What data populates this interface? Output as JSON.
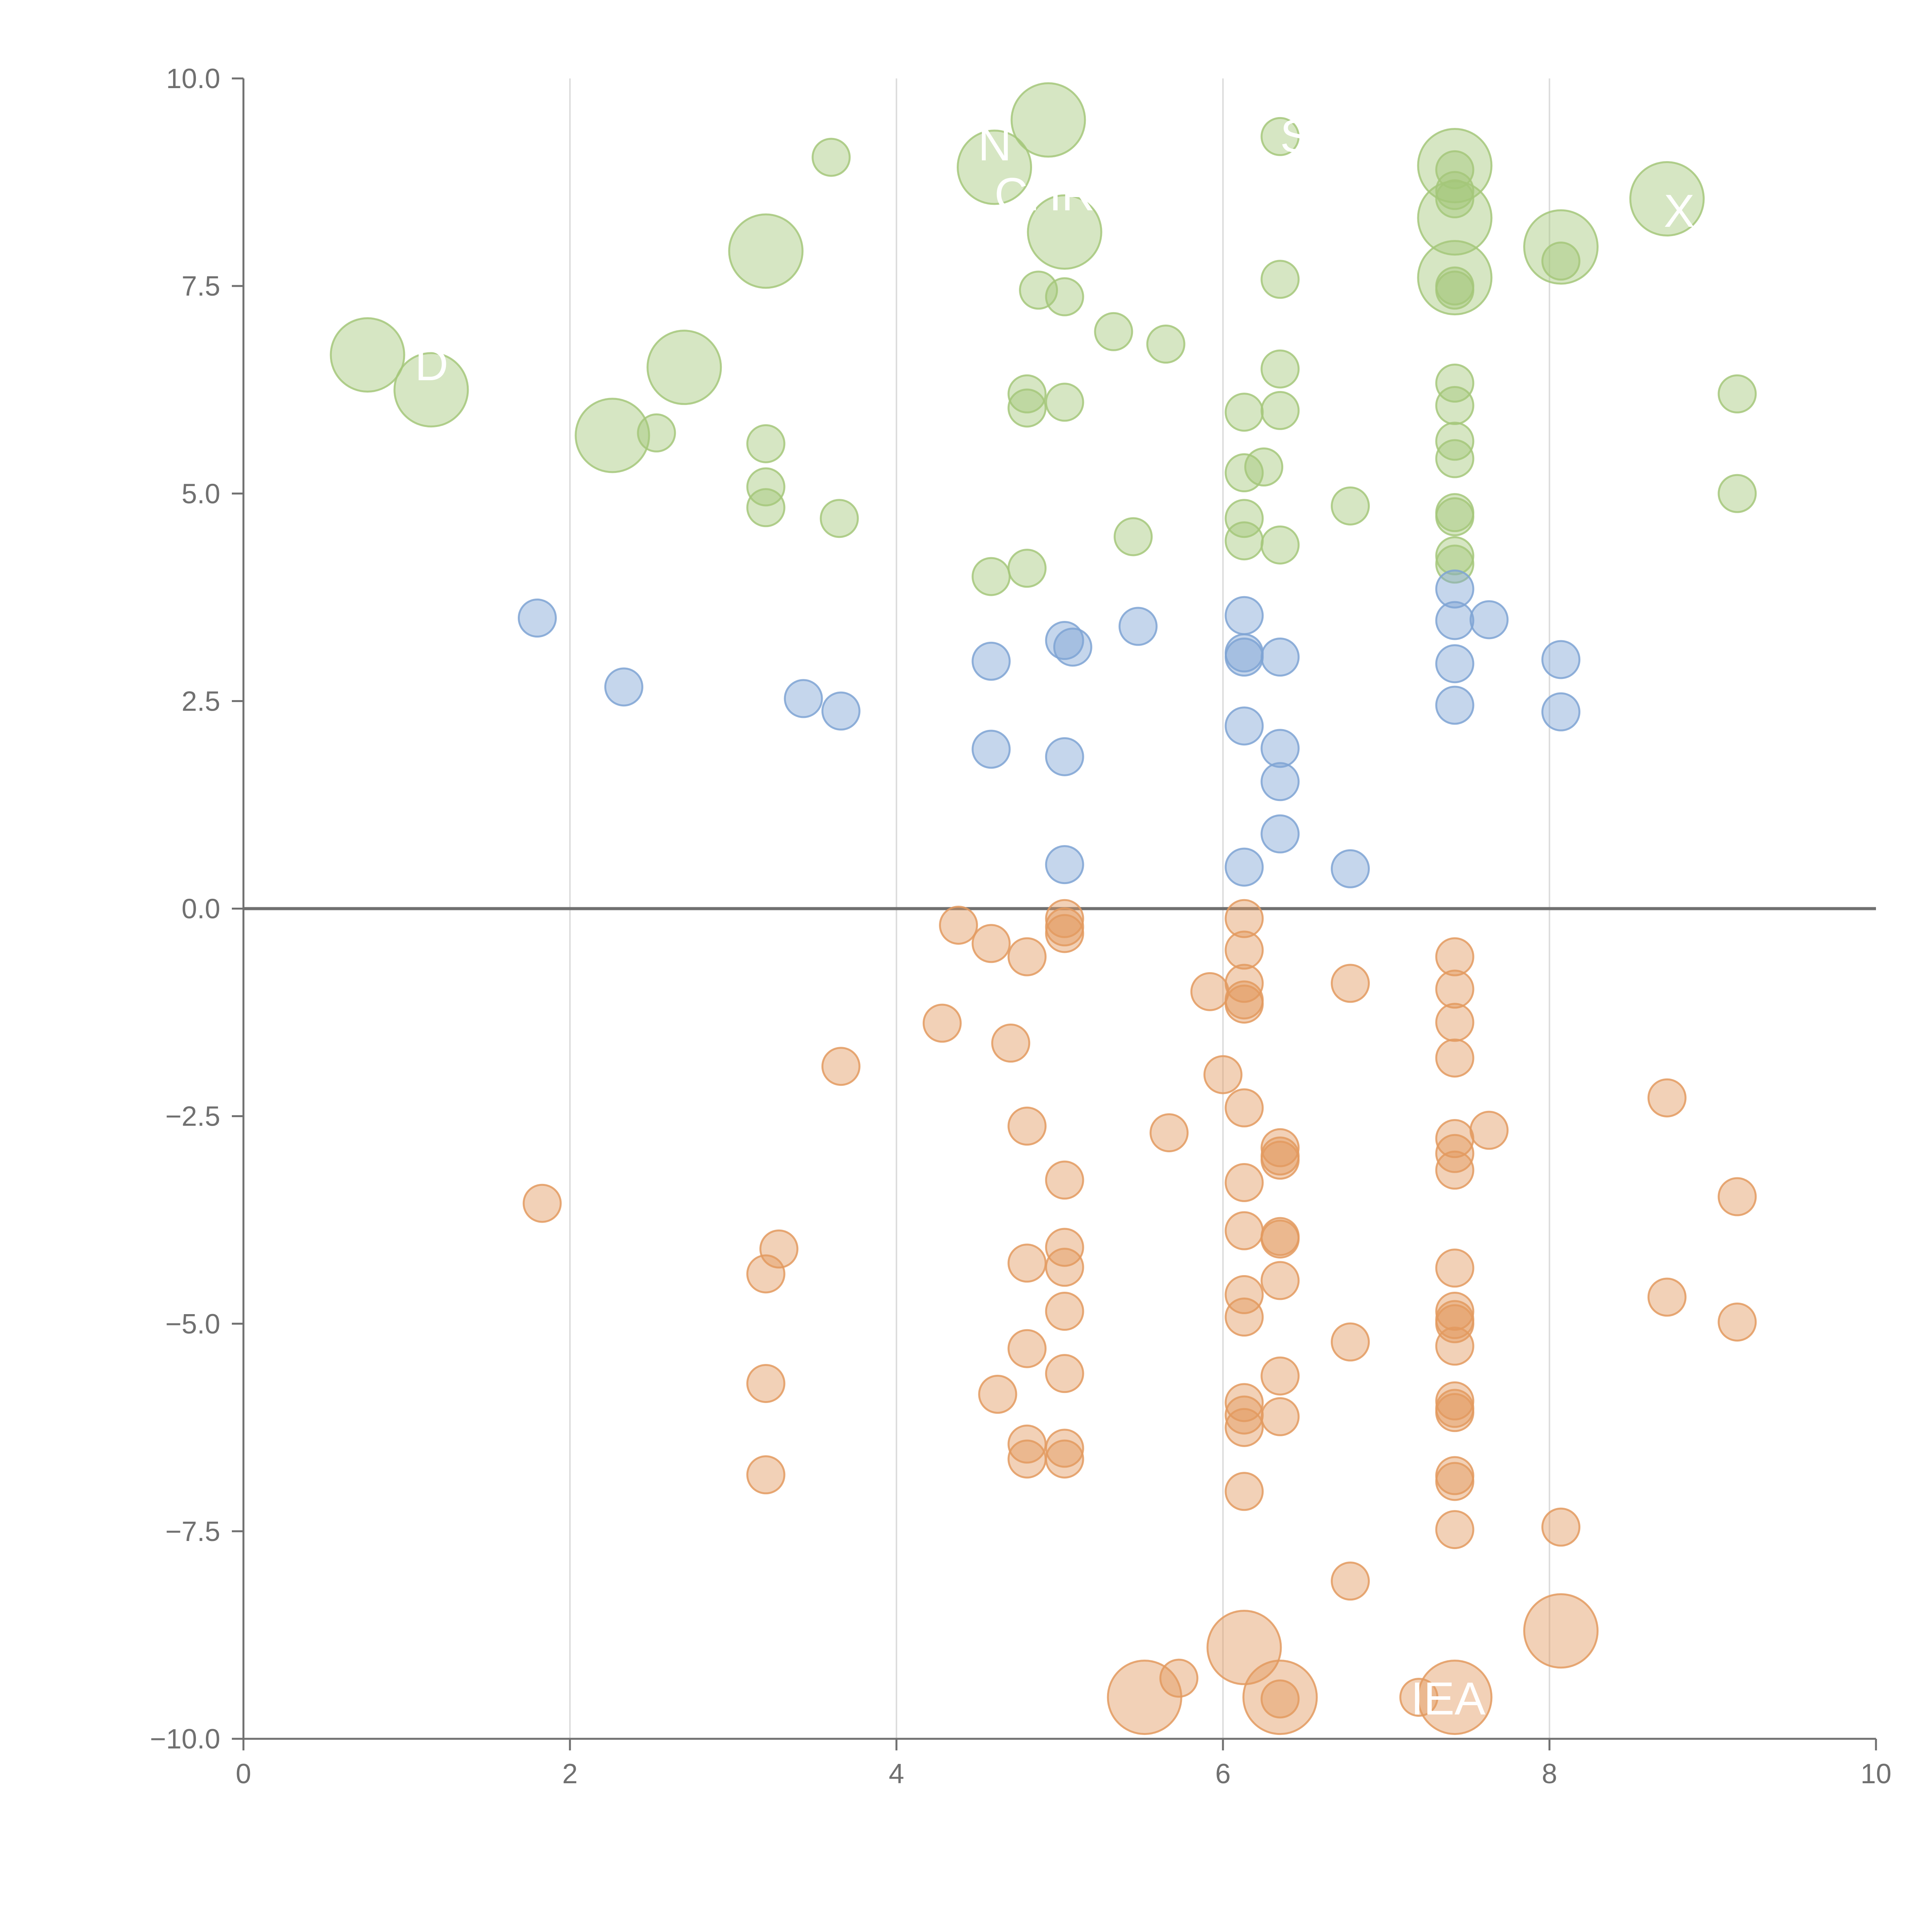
{
  "chart_data": {
    "type": "scatter",
    "title": "",
    "xlabel": "",
    "ylabel": "",
    "xlim": [
      0,
      10
    ],
    "ylim": [
      -10,
      10
    ],
    "x_ticks": [
      "0",
      "2",
      "4",
      "6",
      "8",
      "10"
    ],
    "x_tick_values": [
      0,
      2,
      4,
      6,
      8,
      10
    ],
    "y_ticks": [
      "10.0",
      "7.5",
      "5.0",
      "2.5",
      "0.0",
      "−2.5",
      "−5.0",
      "−7.5",
      "−10.0"
    ],
    "y_tick_values": [
      10,
      7.5,
      5,
      2.5,
      0,
      -2.5,
      -5,
      -7.5,
      -10
    ],
    "vertical_gridlines_at": [
      2,
      4,
      6,
      8
    ],
    "reference_line_y": 0,
    "colors": {
      "green": "#a5c77a",
      "blue": "#7ea3d4",
      "orange": "#e39a5f",
      "axis": "#707070",
      "grid": "#dddddd"
    },
    "series": [
      {
        "name": "green",
        "color": "#a5c77a",
        "size_small": 1,
        "size_large": 2,
        "points": [
          [
            3.6,
            9.05,
            1
          ],
          [
            4.93,
            9.5,
            2
          ],
          [
            4.6,
            8.93,
            2
          ],
          [
            6.35,
            9.3,
            1
          ],
          [
            7.42,
            8.95,
            2
          ],
          [
            7.42,
            8.9,
            1
          ],
          [
            7.42,
            8.65,
            1
          ],
          [
            7.42,
            8.55,
            1
          ],
          [
            7.42,
            8.32,
            2
          ],
          [
            8.72,
            8.55,
            2
          ],
          [
            8.07,
            7.97,
            2
          ],
          [
            5.03,
            8.15,
            2
          ],
          [
            3.2,
            7.92,
            2
          ],
          [
            7.42,
            7.6,
            2
          ],
          [
            7.42,
            7.5,
            1
          ],
          [
            7.42,
            7.45,
            1
          ],
          [
            8.07,
            7.8,
            1
          ],
          [
            6.35,
            7.58,
            1
          ],
          [
            4.87,
            7.45,
            1
          ],
          [
            5.03,
            7.37,
            1
          ],
          [
            5.33,
            6.95,
            1
          ],
          [
            5.65,
            6.8,
            1
          ],
          [
            0.76,
            6.67,
            2
          ],
          [
            1.15,
            6.25,
            2
          ],
          [
            2.7,
            6.52,
            2
          ],
          [
            2.26,
            5.7,
            2
          ],
          [
            2.53,
            5.73,
            1
          ],
          [
            4.8,
            6.2,
            1
          ],
          [
            4.8,
            6.03,
            1
          ],
          [
            5.03,
            6.1,
            1
          ],
          [
            6.13,
            5.98,
            1
          ],
          [
            6.35,
            6.5,
            1
          ],
          [
            6.35,
            6.0,
            1
          ],
          [
            7.42,
            6.33,
            1
          ],
          [
            7.42,
            6.06,
            1
          ],
          [
            9.15,
            6.2,
            1
          ],
          [
            3.2,
            5.6,
            1
          ],
          [
            3.2,
            5.08,
            1
          ],
          [
            3.2,
            4.83,
            1
          ],
          [
            3.65,
            4.7,
            1
          ],
          [
            6.13,
            5.25,
            1
          ],
          [
            6.25,
            5.32,
            1
          ],
          [
            7.42,
            5.63,
            1
          ],
          [
            7.42,
            5.42,
            1
          ],
          [
            6.13,
            4.7,
            1
          ],
          [
            6.13,
            4.43,
            1
          ],
          [
            6.35,
            4.38,
            1
          ],
          [
            6.78,
            4.85,
            1
          ],
          [
            7.42,
            4.77,
            1
          ],
          [
            7.42,
            4.72,
            1
          ],
          [
            7.42,
            4.25,
            1
          ],
          [
            7.42,
            4.15,
            1
          ],
          [
            9.15,
            5.0,
            1
          ],
          [
            5.45,
            4.48,
            1
          ],
          [
            4.58,
            4.0,
            1
          ],
          [
            4.8,
            4.1,
            1
          ]
        ]
      },
      {
        "name": "blue",
        "color": "#7ea3d4",
        "points": [
          [
            1.8,
            3.5,
            1
          ],
          [
            2.33,
            2.67,
            1
          ],
          [
            3.43,
            2.53,
            1
          ],
          [
            3.66,
            2.38,
            1
          ],
          [
            4.58,
            2.98,
            1
          ],
          [
            4.58,
            1.92,
            1
          ],
          [
            5.03,
            3.23,
            1
          ],
          [
            5.08,
            3.15,
            1
          ],
          [
            5.03,
            1.83,
            1
          ],
          [
            5.03,
            0.53,
            1
          ],
          [
            5.48,
            3.4,
            1
          ],
          [
            6.13,
            3.53,
            1
          ],
          [
            6.13,
            3.08,
            1
          ],
          [
            6.13,
            3.03,
            1
          ],
          [
            6.35,
            3.03,
            1
          ],
          [
            6.13,
            2.2,
            1
          ],
          [
            6.35,
            1.93,
            1
          ],
          [
            6.35,
            1.53,
            1
          ],
          [
            6.35,
            0.9,
            1
          ],
          [
            6.13,
            0.5,
            1
          ],
          [
            6.78,
            0.48,
            1
          ],
          [
            7.42,
            3.85,
            1
          ],
          [
            7.42,
            3.47,
            1
          ],
          [
            7.42,
            2.95,
            1
          ],
          [
            7.42,
            2.45,
            1
          ],
          [
            7.63,
            3.48,
            1
          ],
          [
            8.07,
            3.0,
            1
          ],
          [
            8.07,
            2.37,
            1
          ]
        ]
      },
      {
        "name": "orange",
        "color": "#e39a5f",
        "points": [
          [
            4.38,
            -0.2,
            1
          ],
          [
            4.58,
            -0.42,
            1
          ],
          [
            4.8,
            -0.58,
            1
          ],
          [
            5.03,
            -0.22,
            1
          ],
          [
            5.03,
            -0.3,
            1
          ],
          [
            5.03,
            -0.12,
            1
          ],
          [
            6.13,
            -0.12,
            1
          ],
          [
            6.13,
            -0.5,
            1
          ],
          [
            6.13,
            -0.9,
            1
          ],
          [
            6.13,
            -1.1,
            1
          ],
          [
            6.13,
            -1.15,
            1
          ],
          [
            5.92,
            -1.0,
            1
          ],
          [
            6.78,
            -0.9,
            1
          ],
          [
            7.42,
            -0.58,
            1
          ],
          [
            7.42,
            -0.97,
            1
          ],
          [
            7.42,
            -1.37,
            1
          ],
          [
            7.42,
            -1.8,
            1
          ],
          [
            4.28,
            -1.38,
            1
          ],
          [
            4.7,
            -1.62,
            1
          ],
          [
            3.66,
            -1.9,
            1
          ],
          [
            6.0,
            -2.0,
            1
          ],
          [
            6.13,
            -2.4,
            1
          ],
          [
            4.8,
            -2.62,
            1
          ],
          [
            5.67,
            -2.7,
            1
          ],
          [
            6.35,
            -2.88,
            1
          ],
          [
            6.35,
            -2.98,
            1
          ],
          [
            6.35,
            -3.03,
            1
          ],
          [
            7.42,
            -2.77,
            1
          ],
          [
            7.42,
            -2.95,
            1
          ],
          [
            7.42,
            -3.15,
            1
          ],
          [
            7.63,
            -2.67,
            1
          ],
          [
            8.72,
            -2.28,
            1
          ],
          [
            5.03,
            -3.27,
            1
          ],
          [
            6.13,
            -3.3,
            1
          ],
          [
            1.83,
            -3.55,
            1
          ],
          [
            9.15,
            -3.47,
            1
          ],
          [
            3.28,
            -4.1,
            1
          ],
          [
            3.2,
            -4.4,
            1
          ],
          [
            4.8,
            -4.27,
            1
          ],
          [
            5.03,
            -4.08,
            1
          ],
          [
            5.03,
            -4.32,
            1
          ],
          [
            6.13,
            -3.88,
            1
          ],
          [
            6.35,
            -3.95,
            1
          ],
          [
            6.35,
            -3.98,
            1
          ],
          [
            6.35,
            -4.48,
            1
          ],
          [
            7.42,
            -4.33,
            1
          ],
          [
            5.03,
            -4.85,
            1
          ],
          [
            6.13,
            -4.65,
            1
          ],
          [
            6.13,
            -4.92,
            1
          ],
          [
            7.42,
            -4.85,
            1
          ],
          [
            7.42,
            -4.95,
            1
          ],
          [
            7.42,
            -5.0,
            1
          ],
          [
            7.42,
            -5.27,
            1
          ],
          [
            8.72,
            -4.68,
            1
          ],
          [
            9.15,
            -4.98,
            1
          ],
          [
            6.78,
            -5.22,
            1
          ],
          [
            4.8,
            -5.3,
            1
          ],
          [
            5.03,
            -5.6,
            1
          ],
          [
            6.35,
            -5.63,
            1
          ],
          [
            3.2,
            -5.72,
            1
          ],
          [
            4.62,
            -5.85,
            1
          ],
          [
            6.13,
            -5.95,
            1
          ],
          [
            6.13,
            -6.1,
            1
          ],
          [
            6.13,
            -6.25,
            1
          ],
          [
            6.35,
            -6.12,
            1
          ],
          [
            7.42,
            -5.93,
            1
          ],
          [
            7.42,
            -6.02,
            1
          ],
          [
            7.42,
            -6.07,
            1
          ],
          [
            4.8,
            -6.45,
            1
          ],
          [
            4.8,
            -6.63,
            1
          ],
          [
            5.03,
            -6.5,
            1
          ],
          [
            5.03,
            -6.63,
            1
          ],
          [
            3.2,
            -6.82,
            1
          ],
          [
            7.42,
            -6.83,
            1
          ],
          [
            7.42,
            -6.9,
            1
          ],
          [
            6.13,
            -7.02,
            1
          ],
          [
            7.42,
            -7.48,
            1
          ],
          [
            8.07,
            -7.45,
            1
          ],
          [
            6.78,
            -8.1,
            1
          ],
          [
            6.13,
            -8.9,
            2
          ],
          [
            8.07,
            -8.7,
            2
          ],
          [
            5.73,
            -9.27,
            1
          ],
          [
            5.52,
            -9.5,
            2
          ],
          [
            6.35,
            -9.5,
            2
          ],
          [
            7.42,
            -9.5,
            2
          ],
          [
            7.2,
            -9.5,
            1
          ],
          [
            6.35,
            -9.52,
            1
          ]
        ]
      }
    ],
    "labels": [
      {
        "text": "N",
        "x": 4.5,
        "y": 9.2
      },
      {
        "text": "S",
        "x": 6.35,
        "y": 9.3
      },
      {
        "text": "CHR",
        "x": 4.6,
        "y": 8.6
      },
      {
        "text": "X",
        "x": 8.7,
        "y": 8.4
      },
      {
        "text": "D",
        "x": 1.05,
        "y": 6.55
      },
      {
        "text": "IEA",
        "x": 7.15,
        "y": -9.52
      }
    ]
  }
}
